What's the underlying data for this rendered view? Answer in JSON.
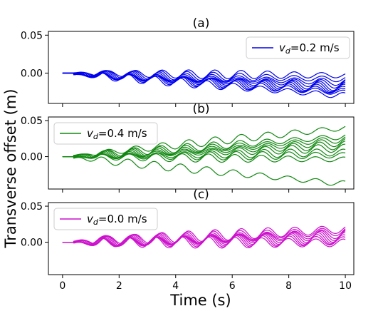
{
  "chart_data": {
    "type": "line",
    "xlabel": "Time (s)",
    "ylabel": "Transverse offset (m)",
    "xlim": [
      -0.5,
      10.3
    ],
    "x_ticks": [
      0,
      2,
      4,
      6,
      8,
      10
    ],
    "x_tick_labels": [
      "0",
      "2",
      "4",
      "6",
      "8",
      "10"
    ],
    "grid": false,
    "subplots": [
      {
        "title": "(a)",
        "ylim": [
          -0.04,
          0.055
        ],
        "y_ticks": [
          0.0,
          0.05
        ],
        "y_tick_labels": [
          "0.00",
          "0.05"
        ],
        "color": "#0000ee",
        "legend": {
          "var": "v",
          "sub": "d",
          "rest": "=0.2 m/s",
          "position": "upper right"
        },
        "trend_final": [
          -0.003,
          -0.008,
          -0.012,
          -0.015,
          -0.018,
          -0.02,
          -0.022,
          -0.024,
          -0.026,
          -0.03
        ],
        "oscillation_amplitude": 0.0045
      },
      {
        "title": "(b)",
        "ylim": [
          -0.045,
          0.055
        ],
        "y_ticks": [
          0.0,
          0.05
        ],
        "y_tick_labels": [
          "0.00",
          "0.05"
        ],
        "color": "#118811",
        "legend": {
          "var": "v",
          "sub": "d",
          "rest": "=0.4 m/s",
          "position": "upper left"
        },
        "trend_final": [
          0.04,
          0.028,
          0.024,
          0.02,
          0.016,
          0.012,
          0.006,
          0.002,
          -0.004,
          -0.038
        ],
        "oscillation_amplitude": 0.0045
      },
      {
        "title": "(c)",
        "ylim": [
          -0.045,
          0.055
        ],
        "y_ticks": [
          0.0,
          0.05
        ],
        "y_tick_labels": [
          "0.00",
          "0.05"
        ],
        "color": "#cc11cc",
        "legend": {
          "var": "v",
          "sub": "d",
          "rest": "=0.0 m/s",
          "position": "upper left"
        },
        "trend_final": [
          0.018,
          0.015,
          0.012,
          0.01,
          0.008,
          0.006,
          0.004,
          0.002,
          -0.001
        ],
        "oscillation_amplitude": 0.0065
      }
    ]
  }
}
